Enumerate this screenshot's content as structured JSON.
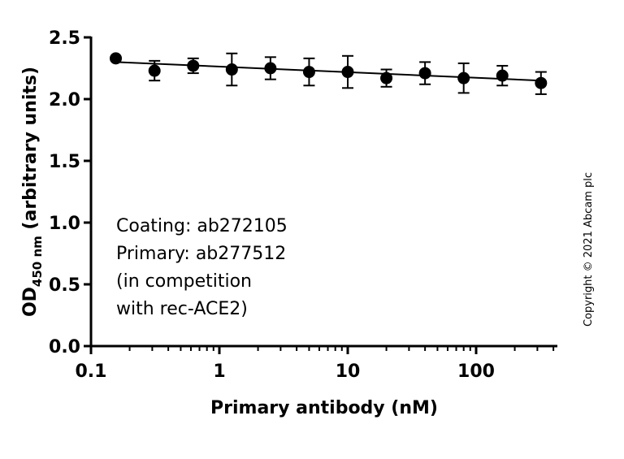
{
  "chart_data": {
    "type": "scatter",
    "x_scale": "log",
    "xlim": [
      0.1,
      400
    ],
    "ylim": [
      0,
      2.5
    ],
    "x_ticks": [
      0.1,
      1,
      10,
      100
    ],
    "x_tick_labels": [
      "0.1",
      "1",
      "10",
      "100"
    ],
    "y_ticks": [
      0,
      0.5,
      1,
      1.5,
      2,
      2.5
    ],
    "y_tick_labels": [
      "0.0",
      "0.5",
      "1.0",
      "1.5",
      "2.0",
      "2.5"
    ],
    "xlabel": "Primary antibody (nM)",
    "ylabel": {
      "prefix": "OD",
      "subscript": "450 nm",
      "suffix": " (arbitrary units)"
    },
    "annotation_lines": [
      "Coating: ab272105",
      "Primary: ab277512",
      "(in competition",
      "with rec-ACE2)"
    ],
    "copyright": "Copyright © 2021 Abcam plc",
    "grid": false,
    "series": [
      {
        "x": [
          0.156,
          0.3125,
          0.625,
          1.25,
          2.5,
          5,
          10,
          20,
          40,
          80,
          160,
          320
        ],
        "y": [
          2.33,
          2.23,
          2.27,
          2.24,
          2.25,
          2.22,
          2.22,
          2.17,
          2.21,
          2.17,
          2.19,
          2.13
        ],
        "err": [
          0.0,
          0.08,
          0.06,
          0.13,
          0.09,
          0.11,
          0.13,
          0.07,
          0.09,
          0.12,
          0.08,
          0.09
        ],
        "fit": {
          "x": [
            0.156,
            320
          ],
          "y": [
            2.3,
            2.15
          ]
        }
      }
    ]
  }
}
